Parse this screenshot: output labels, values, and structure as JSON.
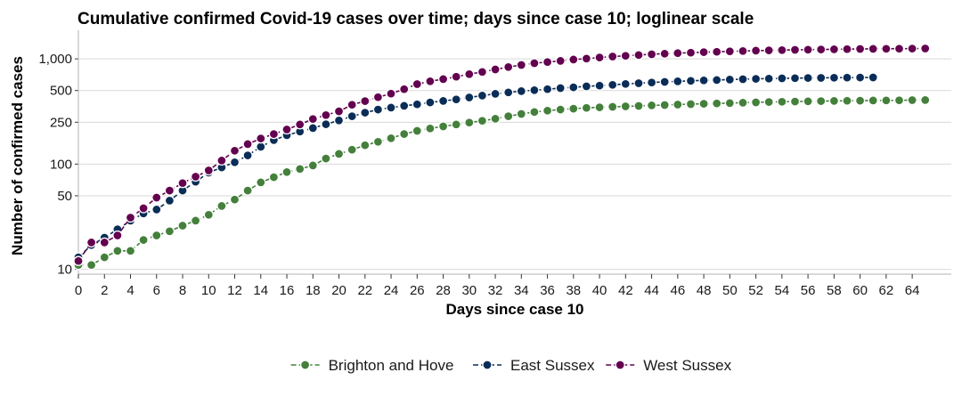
{
  "chart_data": {
    "type": "line",
    "title": "Cumulative confirmed Covid-19 cases over time; days since case 10; loglinear scale",
    "xlabel": "Days since case 10",
    "ylabel": "Number of confirmed cases",
    "y_scale": "log",
    "xlim": [
      0,
      67
    ],
    "ylim": [
      9,
      1600
    ],
    "x_ticks": [
      0,
      2,
      4,
      6,
      8,
      10,
      12,
      14,
      16,
      18,
      20,
      22,
      24,
      26,
      28,
      30,
      32,
      34,
      36,
      38,
      40,
      42,
      44,
      46,
      48,
      50,
      52,
      54,
      56,
      58,
      60,
      62,
      64
    ],
    "y_ticks": [
      10,
      50,
      100,
      250,
      500,
      1000
    ],
    "y_tick_labels": [
      "10",
      "50",
      "100",
      "250",
      "500",
      "1,000"
    ],
    "grid": "horizontal",
    "legend_position": "bottom",
    "series": [
      {
        "name": "Brighton and Hove",
        "color": "#44803b",
        "x": [
          0,
          1,
          2,
          3,
          4,
          5,
          6,
          7,
          8,
          9,
          10,
          11,
          12,
          13,
          14,
          15,
          16,
          17,
          18,
          19,
          20,
          21,
          22,
          23,
          24,
          25,
          26,
          27,
          28,
          29,
          30,
          31,
          32,
          33,
          34,
          35,
          36,
          37,
          38,
          39,
          40,
          41,
          42,
          43,
          44,
          45,
          46,
          47,
          48,
          49,
          50,
          51,
          52,
          53,
          54,
          55,
          56,
          57,
          58,
          59,
          60,
          61,
          62,
          63,
          64,
          65
        ],
        "values": [
          11,
          11,
          13,
          15,
          15,
          19,
          21,
          23,
          26,
          29,
          33,
          40,
          46,
          56,
          67,
          75,
          84,
          90,
          97,
          113,
          125,
          137,
          151,
          163,
          176,
          193,
          207,
          218,
          228,
          238,
          248,
          258,
          270,
          285,
          300,
          313,
          322,
          330,
          336,
          342,
          346,
          350,
          354,
          357,
          361,
          364,
          368,
          371,
          374,
          377,
          380,
          383,
          386,
          389,
          391,
          393,
          395,
          397,
          398,
          400,
          401,
          402,
          403,
          404,
          405,
          406
        ]
      },
      {
        "name": "East Sussex",
        "color": "#0a2d57",
        "x": [
          0,
          1,
          2,
          3,
          4,
          5,
          6,
          7,
          8,
          9,
          10,
          11,
          12,
          13,
          14,
          15,
          16,
          17,
          18,
          19,
          20,
          21,
          22,
          23,
          24,
          25,
          26,
          27,
          28,
          29,
          30,
          31,
          32,
          33,
          34,
          35,
          36,
          37,
          38,
          39,
          40,
          41,
          42,
          43,
          44,
          45,
          46,
          47,
          48,
          49,
          50,
          51,
          52,
          53,
          54,
          55,
          56,
          57,
          58,
          59,
          60,
          61
        ],
        "values": [
          13,
          17,
          20,
          24,
          29,
          34,
          37,
          45,
          56,
          68,
          83,
          93,
          104,
          121,
          146,
          169,
          188,
          204,
          220,
          239,
          260,
          285,
          308,
          330,
          344,
          358,
          370,
          385,
          398,
          412,
          430,
          448,
          465,
          480,
          493,
          504,
          515,
          527,
          537,
          548,
          557,
          567,
          578,
          587,
          596,
          604,
          611,
          618,
          624,
          630,
          636,
          641,
          645,
          649,
          653,
          656,
          658,
          660,
          662,
          664,
          665,
          666
        ]
      },
      {
        "name": "West Sussex",
        "color": "#63004f",
        "x": [
          0,
          1,
          2,
          3,
          4,
          5,
          6,
          7,
          8,
          9,
          10,
          11,
          12,
          13,
          14,
          15,
          16,
          17,
          18,
          19,
          20,
          21,
          22,
          23,
          24,
          25,
          26,
          27,
          28,
          29,
          30,
          31,
          32,
          33,
          34,
          35,
          36,
          37,
          38,
          39,
          40,
          41,
          42,
          43,
          44,
          45,
          46,
          47,
          48,
          49,
          50,
          51,
          52,
          53,
          54,
          55,
          56,
          57,
          58,
          59,
          60,
          61,
          62,
          63,
          64,
          65
        ],
        "values": [
          12,
          18,
          18,
          21,
          31,
          38,
          48,
          56,
          66,
          76,
          87,
          108,
          134,
          155,
          175,
          193,
          213,
          238,
          268,
          292,
          317,
          366,
          397,
          432,
          467,
          515,
          575,
          612,
          642,
          677,
          716,
          752,
          794,
          836,
          874,
          909,
          933,
          957,
          985,
          1007,
          1030,
          1052,
          1070,
          1088,
          1105,
          1120,
          1133,
          1145,
          1157,
          1168,
          1178,
          1187,
          1196,
          1204,
          1211,
          1217,
          1223,
          1228,
          1233,
          1237,
          1241,
          1244,
          1247,
          1250,
          1253,
          1255
        ]
      }
    ]
  }
}
